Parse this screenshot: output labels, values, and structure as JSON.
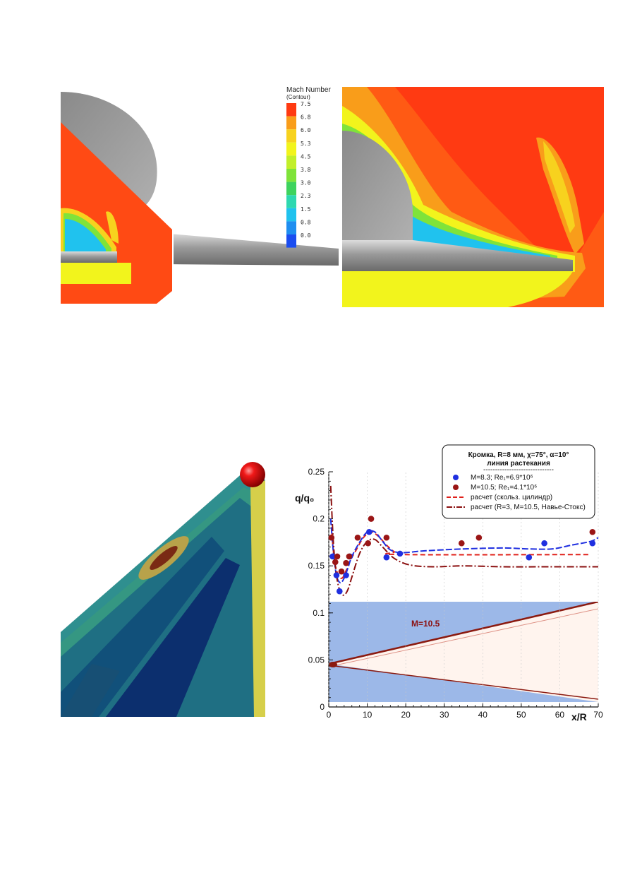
{
  "figure_top": {
    "colorbar": {
      "title": "Mach Number",
      "subtitle": "(Contour)",
      "levels": [
        "7.5",
        "6.8",
        "6.0",
        "5.3",
        "4.5",
        "3.8",
        "3.0",
        "2.3",
        "1.5",
        "0.8",
        "0.0"
      ],
      "colors": [
        "#ff3a12",
        "#f99d1a",
        "#f7d21e",
        "#f2f41c",
        "#c2ef2a",
        "#7fe33a",
        "#3ed35e",
        "#2ed8b0",
        "#20c2ee",
        "#1f8ef0",
        "#1b4df0"
      ]
    }
  },
  "chart_data": {
    "type": "scatter",
    "legend": {
      "title_line1": "Кромка, R=8 мм, χ=75°, α=10°",
      "title_line2": "линия растекания",
      "separator": "------------------------------",
      "entries": [
        {
          "label": "M=8.3;     Re₁=6.9*10⁶",
          "style": "dot",
          "color": "#1f2fe0"
        },
        {
          "label": "M=10.5;   Re₁=4.1*10⁶",
          "style": "dot",
          "color": "#9a1515"
        },
        {
          "label": "расчет (скольз. цилиндр)",
          "style": "dashed",
          "color": "#e0201a"
        },
        {
          "label": "расчет (R=3, M=10.5, Навье-Стокс)",
          "style": "dashdot",
          "color": "#8b1010"
        }
      ]
    },
    "ylabel": "q/q₀",
    "xlabel": "x/R",
    "xlim": [
      0,
      70
    ],
    "ylim": [
      0,
      0.25
    ],
    "x_ticks": [
      "0",
      "10",
      "20",
      "30",
      "40",
      "50",
      "60",
      "70"
    ],
    "y_ticks": [
      "0",
      "0.05",
      "0.1",
      "0.15",
      "0.2",
      "0.25"
    ],
    "annotation": "M=10.5",
    "series": [
      {
        "name": "M=8.3;     Re₁=6.9*10⁶",
        "color": "#1f2fe0",
        "points": [
          [
            1,
            0.16
          ],
          [
            2,
            0.14
          ],
          [
            2.8,
            0.123
          ],
          [
            4.5,
            0.14
          ],
          [
            5.5,
            0.16
          ],
          [
            10.5,
            0.186
          ],
          [
            15,
            0.159
          ],
          [
            18.5,
            0.163
          ],
          [
            52,
            0.159
          ],
          [
            56,
            0.174
          ],
          [
            68.5,
            0.174
          ]
        ]
      },
      {
        "name": "M=10.5;   Re₁=4.1*10⁶",
        "color": "#9a1515",
        "points": [
          [
            0.7,
            0.18
          ],
          [
            1.7,
            0.154
          ],
          [
            2.2,
            0.16
          ],
          [
            3.3,
            0.144
          ],
          [
            4.5,
            0.153
          ],
          [
            5.3,
            0.16
          ],
          [
            7.5,
            0.18
          ],
          [
            10.2,
            0.174
          ],
          [
            11,
            0.2
          ],
          [
            15,
            0.18
          ],
          [
            34.5,
            0.174
          ],
          [
            39,
            0.18
          ],
          [
            68.5,
            0.186
          ]
        ]
      }
    ],
    "curves": [
      {
        "name": "расчет (скольз. цилиндр)",
        "color": "#e0201a",
        "dash": "7,4",
        "points": [
          [
            0.8,
            0.185
          ],
          [
            1.5,
            0.155
          ],
          [
            2.5,
            0.14
          ],
          [
            3.5,
            0.137
          ],
          [
            4.5,
            0.145
          ],
          [
            5.5,
            0.155
          ],
          [
            7,
            0.166
          ],
          [
            9,
            0.18
          ],
          [
            11,
            0.186
          ],
          [
            13,
            0.181
          ],
          [
            15,
            0.172
          ],
          [
            17,
            0.165
          ],
          [
            19,
            0.162
          ],
          [
            68,
            0.162
          ]
        ]
      },
      {
        "name": "расчет (R=3, M=10.5, Навье-Стокс)",
        "color": "#1f2fe0",
        "dash": "9,3",
        "points": [
          [
            0.5,
            0.2
          ],
          [
            1.2,
            0.165
          ],
          [
            2,
            0.14
          ],
          [
            3,
            0.132
          ],
          [
            4,
            0.137
          ],
          [
            5,
            0.148
          ],
          [
            6,
            0.16
          ],
          [
            8,
            0.175
          ],
          [
            10,
            0.186
          ],
          [
            12,
            0.186
          ],
          [
            14,
            0.176
          ],
          [
            16,
            0.167
          ],
          [
            19,
            0.164
          ],
          [
            25,
            0.166
          ],
          [
            35,
            0.168
          ],
          [
            45,
            0.169
          ],
          [
            52,
            0.168
          ],
          [
            58,
            0.168
          ],
          [
            63,
            0.172
          ],
          [
            68,
            0.176
          ],
          [
            70,
            0.18
          ]
        ]
      },
      {
        "name": "расчет (R=3, M=10.5, Навье-Стокс)",
        "color": "#8b1010",
        "dash": "10,3,2,3",
        "points": [
          [
            0.5,
            0.235
          ],
          [
            1.2,
            0.175
          ],
          [
            2,
            0.14
          ],
          [
            3,
            0.122
          ],
          [
            4,
            0.119
          ],
          [
            5,
            0.125
          ],
          [
            6,
            0.138
          ],
          [
            8,
            0.163
          ],
          [
            10,
            0.176
          ],
          [
            12,
            0.178
          ],
          [
            14,
            0.17
          ],
          [
            17,
            0.158
          ],
          [
            21,
            0.151
          ],
          [
            27,
            0.149
          ],
          [
            35,
            0.15
          ],
          [
            45,
            0.149
          ],
          [
            55,
            0.149
          ],
          [
            70,
            0.149
          ]
        ]
      }
    ]
  }
}
